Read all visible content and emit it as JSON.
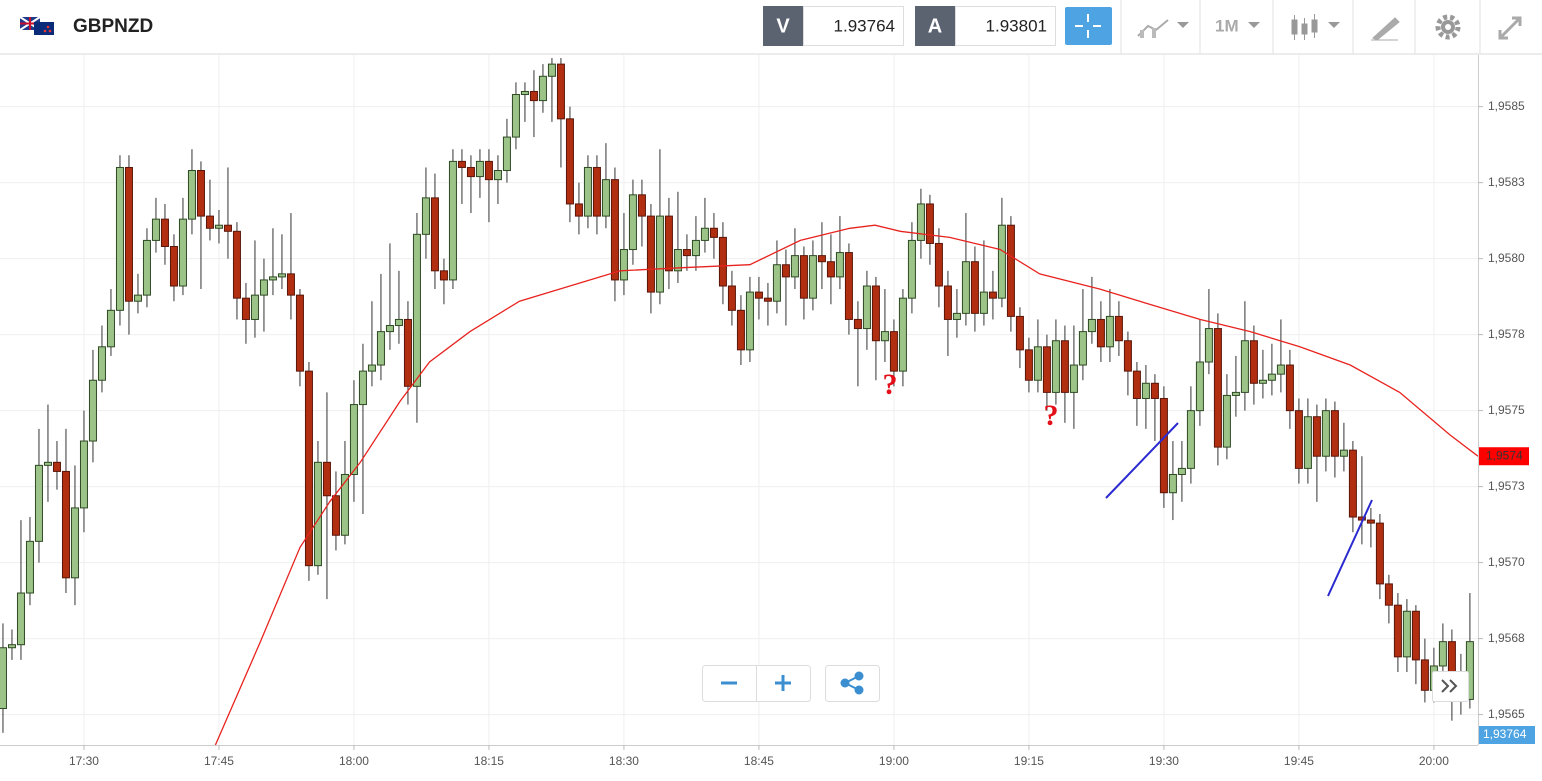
{
  "header": {
    "symbol": "GBPNZD",
    "sell_label": "V",
    "sell_price": "1.93764",
    "buy_label": "A",
    "buy_price": "1.93801",
    "timeframe": "1M"
  },
  "chart_data": {
    "type": "candlestick",
    "up_color": "#9cc488",
    "down_color": "#b22e10",
    "ma_color": "#e8231f",
    "grid": true,
    "xlim": [
      -0.33,
      163.9
    ],
    "xticks": [
      {
        "value": 9,
        "label": "17:30"
      },
      {
        "value": 24,
        "label": "17:45"
      },
      {
        "value": 39,
        "label": "18:00"
      },
      {
        "value": 54,
        "label": "18:15"
      },
      {
        "value": 69,
        "label": "18:30"
      },
      {
        "value": 84,
        "label": "18:45"
      },
      {
        "value": 99,
        "label": "19:00"
      },
      {
        "value": 114,
        "label": "19:15"
      },
      {
        "value": 129,
        "label": "19:30"
      },
      {
        "value": 144,
        "label": "19:45"
      },
      {
        "value": 159,
        "label": "20:00"
      }
    ],
    "ylim": [
      1.9564,
      1.95867
    ],
    "yticks": [
      {
        "value": 1.9565,
        "label": "1,9565"
      },
      {
        "value": 1.95675,
        "label": "1,9568"
      },
      {
        "value": 1.957,
        "label": "1,9570"
      },
      {
        "value": 1.95725,
        "label": "1,9573"
      },
      {
        "value": 1.9575,
        "label": "1,9575"
      },
      {
        "value": 1.95775,
        "label": "1,9578"
      },
      {
        "value": 1.958,
        "label": "1,9580"
      },
      {
        "value": 1.95825,
        "label": "1,9583"
      },
      {
        "value": 1.9585,
        "label": "1,9585"
      }
    ],
    "candles": [
      [
        1.95652,
        1.9568,
        1.95644,
        1.95672
      ],
      [
        1.95672,
        1.95678,
        1.95668,
        1.95673
      ],
      [
        1.95673,
        1.95714,
        1.95668,
        1.9569
      ],
      [
        1.9569,
        1.95715,
        1.95686,
        1.95707
      ],
      [
        1.95707,
        1.95744,
        1.957,
        1.95732
      ],
      [
        1.95732,
        1.95752,
        1.9572,
        1.95733
      ],
      [
        1.95733,
        1.9574,
        1.95724,
        1.9573
      ],
      [
        1.9573,
        1.95744,
        1.9569,
        1.95695
      ],
      [
        1.95695,
        1.95732,
        1.95686,
        1.95718
      ],
      [
        1.95718,
        1.9575,
        1.9571,
        1.9574
      ],
      [
        1.9574,
        1.9577,
        1.95733,
        1.9576
      ],
      [
        1.9576,
        1.95778,
        1.95756,
        1.95771
      ],
      [
        1.95771,
        1.9579,
        1.95768,
        1.95783
      ],
      [
        1.95783,
        1.95834,
        1.95778,
        1.9583
      ],
      [
        1.9583,
        1.95834,
        1.95775,
        1.95786
      ],
      [
        1.95786,
        1.95795,
        1.95782,
        1.95788
      ],
      [
        1.95788,
        1.9581,
        1.95784,
        1.95806
      ],
      [
        1.95806,
        1.9582,
        1.95802,
        1.95813
      ],
      [
        1.95813,
        1.95818,
        1.95798,
        1.95804
      ],
      [
        1.95804,
        1.95808,
        1.95786,
        1.95791
      ],
      [
        1.95791,
        1.9582,
        1.95788,
        1.95813
      ],
      [
        1.95813,
        1.95836,
        1.95808,
        1.95829
      ],
      [
        1.95829,
        1.95832,
        1.9579,
        1.95814
      ],
      [
        1.95814,
        1.95826,
        1.95806,
        1.9581
      ],
      [
        1.9581,
        1.95816,
        1.95805,
        1.95811
      ],
      [
        1.95811,
        1.9583,
        1.958,
        1.95809
      ],
      [
        1.95809,
        1.95812,
        1.9578,
        1.95787
      ],
      [
        1.95787,
        1.95792,
        1.95772,
        1.9578
      ],
      [
        1.9578,
        1.95806,
        1.95774,
        1.95788
      ],
      [
        1.95788,
        1.958,
        1.95776,
        1.95793
      ],
      [
        1.95793,
        1.9581,
        1.95788,
        1.95794
      ],
      [
        1.95794,
        1.95808,
        1.9579,
        1.95795
      ],
      [
        1.95795,
        1.95815,
        1.9578,
        1.95788
      ],
      [
        1.95788,
        1.9579,
        1.95758,
        1.95763
      ],
      [
        1.95763,
        1.95766,
        1.95694,
        1.95699
      ],
      [
        1.95699,
        1.9574,
        1.95696,
        1.95733
      ],
      [
        1.95733,
        1.95756,
        1.95688,
        1.95722
      ],
      [
        1.95722,
        1.9573,
        1.95704,
        1.95709
      ],
      [
        1.95709,
        1.9574,
        1.95706,
        1.95729
      ],
      [
        1.95729,
        1.9576,
        1.9572,
        1.95752
      ],
      [
        1.95752,
        1.95772,
        1.95716,
        1.95763
      ],
      [
        1.95763,
        1.95786,
        1.95758,
        1.95765
      ],
      [
        1.95765,
        1.95795,
        1.9576,
        1.95776
      ],
      [
        1.95776,
        1.95805,
        1.9577,
        1.95778
      ],
      [
        1.95778,
        1.95796,
        1.95772,
        1.9578
      ],
      [
        1.9578,
        1.95786,
        1.95752,
        1.95758
      ],
      [
        1.95758,
        1.95815,
        1.95746,
        1.95808
      ],
      [
        1.95808,
        1.9583,
        1.958,
        1.9582
      ],
      [
        1.9582,
        1.95828,
        1.9579,
        1.95796
      ],
      [
        1.95796,
        1.958,
        1.95785,
        1.95793
      ],
      [
        1.95793,
        1.95836,
        1.9579,
        1.95832
      ],
      [
        1.95832,
        1.95836,
        1.95818,
        1.9583
      ],
      [
        1.9583,
        1.95834,
        1.95815,
        1.95827
      ],
      [
        1.95827,
        1.95836,
        1.9582,
        1.95832
      ],
      [
        1.95832,
        1.95836,
        1.95812,
        1.95826
      ],
      [
        1.95826,
        1.95834,
        1.95818,
        1.95829
      ],
      [
        1.95829,
        1.95846,
        1.95825,
        1.9584
      ],
      [
        1.9584,
        1.95858,
        1.95836,
        1.95854
      ],
      [
        1.95854,
        1.95858,
        1.95845,
        1.95855
      ],
      [
        1.95855,
        1.95862,
        1.9584,
        1.95852
      ],
      [
        1.95852,
        1.95864,
        1.95848,
        1.9586
      ],
      [
        1.9586,
        1.95866,
        1.95845,
        1.95864
      ],
      [
        1.95864,
        1.95866,
        1.9583,
        1.95846
      ],
      [
        1.95846,
        1.9585,
        1.95812,
        1.95818
      ],
      [
        1.95818,
        1.95825,
        1.95808,
        1.95814
      ],
      [
        1.95814,
        1.95834,
        1.9581,
        1.9583
      ],
      [
        1.9583,
        1.95834,
        1.95808,
        1.95814
      ],
      [
        1.95814,
        1.95838,
        1.9581,
        1.95826
      ],
      [
        1.95826,
        1.9583,
        1.95786,
        1.95793
      ],
      [
        1.95793,
        1.95815,
        1.95788,
        1.95803
      ],
      [
        1.95803,
        1.95826,
        1.95798,
        1.95821
      ],
      [
        1.95821,
        1.95826,
        1.95804,
        1.95814
      ],
      [
        1.95814,
        1.95818,
        1.95782,
        1.95789
      ],
      [
        1.95789,
        1.95836,
        1.95785,
        1.95814
      ],
      [
        1.95814,
        1.9582,
        1.9579,
        1.95796
      ],
      [
        1.95796,
        1.95822,
        1.95792,
        1.95803
      ],
      [
        1.95803,
        1.95808,
        1.95796,
        1.95801
      ],
      [
        1.95801,
        1.95814,
        1.95796,
        1.95806
      ],
      [
        1.95806,
        1.9582,
        1.95802,
        1.9581
      ],
      [
        1.9581,
        1.95815,
        1.958,
        1.95807
      ],
      [
        1.95807,
        1.95812,
        1.95785,
        1.95791
      ],
      [
        1.95791,
        1.95796,
        1.95778,
        1.95783
      ],
      [
        1.95783,
        1.95788,
        1.95765,
        1.9577
      ],
      [
        1.9577,
        1.95794,
        1.95766,
        1.95789
      ],
      [
        1.95789,
        1.95794,
        1.9578,
        1.95787
      ],
      [
        1.95787,
        1.95792,
        1.95778,
        1.95786
      ],
      [
        1.95786,
        1.95806,
        1.95782,
        1.95798
      ],
      [
        1.95798,
        1.95803,
        1.95778,
        1.95794
      ],
      [
        1.95794,
        1.9581,
        1.9579,
        1.95801
      ],
      [
        1.95801,
        1.95804,
        1.9578,
        1.95787
      ],
      [
        1.95787,
        1.95806,
        1.95783,
        1.95801
      ],
      [
        1.95801,
        1.95812,
        1.9579,
        1.95799
      ],
      [
        1.95799,
        1.95808,
        1.95785,
        1.95794
      ],
      [
        1.95794,
        1.95814,
        1.9579,
        1.95802
      ],
      [
        1.95802,
        1.95805,
        1.95775,
        1.9578
      ],
      [
        1.9578,
        1.95786,
        1.95758,
        1.95777
      ],
      [
        1.95777,
        1.95796,
        1.9577,
        1.95791
      ],
      [
        1.95791,
        1.95794,
        1.9576,
        1.95773
      ],
      [
        1.95773,
        1.9579,
        1.95766,
        1.95776
      ],
      [
        1.95776,
        1.9578,
        1.95758,
        1.95763
      ],
      [
        1.95763,
        1.9579,
        1.95758,
        1.95787
      ],
      [
        1.95787,
        1.95812,
        1.95782,
        1.95806
      ],
      [
        1.95806,
        1.95823,
        1.958,
        1.95818
      ],
      [
        1.95818,
        1.95821,
        1.95798,
        1.95805
      ],
      [
        1.95805,
        1.9581,
        1.95784,
        1.95791
      ],
      [
        1.95791,
        1.95796,
        1.95768,
        1.9578
      ],
      [
        1.9578,
        1.9579,
        1.95774,
        1.95782
      ],
      [
        1.95782,
        1.95815,
        1.95778,
        1.95799
      ],
      [
        1.95799,
        1.95804,
        1.95776,
        1.95782
      ],
      [
        1.95782,
        1.95806,
        1.95778,
        1.95789
      ],
      [
        1.95789,
        1.95796,
        1.9578,
        1.95787
      ],
      [
        1.95787,
        1.9582,
        1.95784,
        1.95811
      ],
      [
        1.95811,
        1.95814,
        1.95776,
        1.95781
      ],
      [
        1.95781,
        1.95784,
        1.95764,
        1.9577
      ],
      [
        1.9577,
        1.95774,
        1.95756,
        1.9576
      ],
      [
        1.9576,
        1.9578,
        1.95756,
        1.95771
      ],
      [
        1.95771,
        1.95775,
        1.9575,
        1.95756
      ],
      [
        1.95756,
        1.9578,
        1.95752,
        1.95773
      ],
      [
        1.95773,
        1.95778,
        1.95746,
        1.95756
      ],
      [
        1.95756,
        1.95778,
        1.95744,
        1.95765
      ],
      [
        1.95765,
        1.9579,
        1.9576,
        1.95776
      ],
      [
        1.95776,
        1.95794,
        1.95772,
        1.9578
      ],
      [
        1.9578,
        1.95786,
        1.95766,
        1.95771
      ],
      [
        1.95771,
        1.9579,
        1.95766,
        1.95781
      ],
      [
        1.95781,
        1.95786,
        1.95768,
        1.95773
      ],
      [
        1.95773,
        1.95776,
        1.95755,
        1.95763
      ],
      [
        1.95763,
        1.95766,
        1.95745,
        1.95754
      ],
      [
        1.95754,
        1.95765,
        1.95744,
        1.95759
      ],
      [
        1.95759,
        1.95762,
        1.9574,
        1.95754
      ],
      [
        1.95754,
        1.95758,
        1.95718,
        1.95723
      ],
      [
        1.95723,
        1.9574,
        1.95714,
        1.95729
      ],
      [
        1.95729,
        1.9574,
        1.9572,
        1.95731
      ],
      [
        1.95731,
        1.95758,
        1.95726,
        1.9575
      ],
      [
        1.9575,
        1.9578,
        1.95745,
        1.95766
      ],
      [
        1.95766,
        1.9579,
        1.95762,
        1.95777
      ],
      [
        1.95777,
        1.95782,
        1.95732,
        1.95738
      ],
      [
        1.95738,
        1.95762,
        1.95734,
        1.95755
      ],
      [
        1.95755,
        1.95768,
        1.95748,
        1.95756
      ],
      [
        1.95756,
        1.95786,
        1.9575,
        1.95773
      ],
      [
        1.95773,
        1.95778,
        1.95752,
        1.95759
      ],
      [
        1.95759,
        1.9577,
        1.95754,
        1.9576
      ],
      [
        1.9576,
        1.95772,
        1.95755,
        1.95762
      ],
      [
        1.95762,
        1.9578,
        1.95756,
        1.95765
      ],
      [
        1.95765,
        1.9577,
        1.95744,
        1.9575
      ],
      [
        1.9575,
        1.95754,
        1.95726,
        1.95731
      ],
      [
        1.95731,
        1.95754,
        1.95726,
        1.95748
      ],
      [
        1.95748,
        1.95752,
        1.9572,
        1.95735
      ],
      [
        1.95735,
        1.95754,
        1.9573,
        1.9575
      ],
      [
        1.9575,
        1.95753,
        1.95728,
        1.95735
      ],
      [
        1.95735,
        1.95746,
        1.9573,
        1.95737
      ],
      [
        1.95737,
        1.9574,
        1.9571,
        1.95715
      ],
      [
        1.95715,
        1.95735,
        1.95706,
        1.95714
      ],
      [
        1.95714,
        1.95718,
        1.95705,
        1.95713
      ],
      [
        1.95713,
        1.95716,
        1.95688,
        1.95693
      ],
      [
        1.95693,
        1.95696,
        1.9568,
        1.95686
      ],
      [
        1.95686,
        1.9569,
        1.95664,
        1.95669
      ],
      [
        1.95669,
        1.95688,
        1.95664,
        1.95684
      ],
      [
        1.95684,
        1.95686,
        1.9566,
        1.95668
      ],
      [
        1.95668,
        1.95675,
        1.95654,
        1.95658
      ],
      [
        1.95658,
        1.95672,
        1.95654,
        1.95666
      ],
      [
        1.95666,
        1.9568,
        1.95662,
        1.95674
      ],
      [
        1.95674,
        1.95678,
        1.95648,
        1.95664
      ],
      [
        1.95664,
        1.9567,
        1.9565,
        1.95655
      ],
      [
        1.95655,
        1.9569,
        1.95652,
        1.95674
      ]
    ],
    "ma": {
      "x": [
        23.6,
        28.6,
        33,
        36.3,
        39.7,
        44.1,
        47.4,
        51.9,
        57.4,
        63,
        68.6,
        75.2,
        83,
        88.6,
        94.1,
        96.9,
        99.7,
        105.2,
        110.8,
        115.2,
        121.9,
        127.4,
        133,
        138.6,
        144.1,
        149.7,
        155.2,
        160.8,
        163.9
      ],
      "values": [
        1.9564,
        1.95674,
        1.95705,
        1.9572,
        1.95733,
        1.95753,
        1.95766,
        1.95776,
        1.95786,
        1.95791,
        1.95796,
        1.95797,
        1.95798,
        1.95806,
        1.9581,
        1.95811,
        1.95809,
        1.95807,
        1.95803,
        1.95795,
        1.9579,
        1.95785,
        1.9578,
        1.95776,
        1.95771,
        1.95765,
        1.95756,
        1.95742,
        1.95735
      ]
    },
    "price_labels": {
      "ma": "1,9574",
      "bid": "1,93764"
    },
    "annotations": [
      "?",
      "?"
    ]
  }
}
